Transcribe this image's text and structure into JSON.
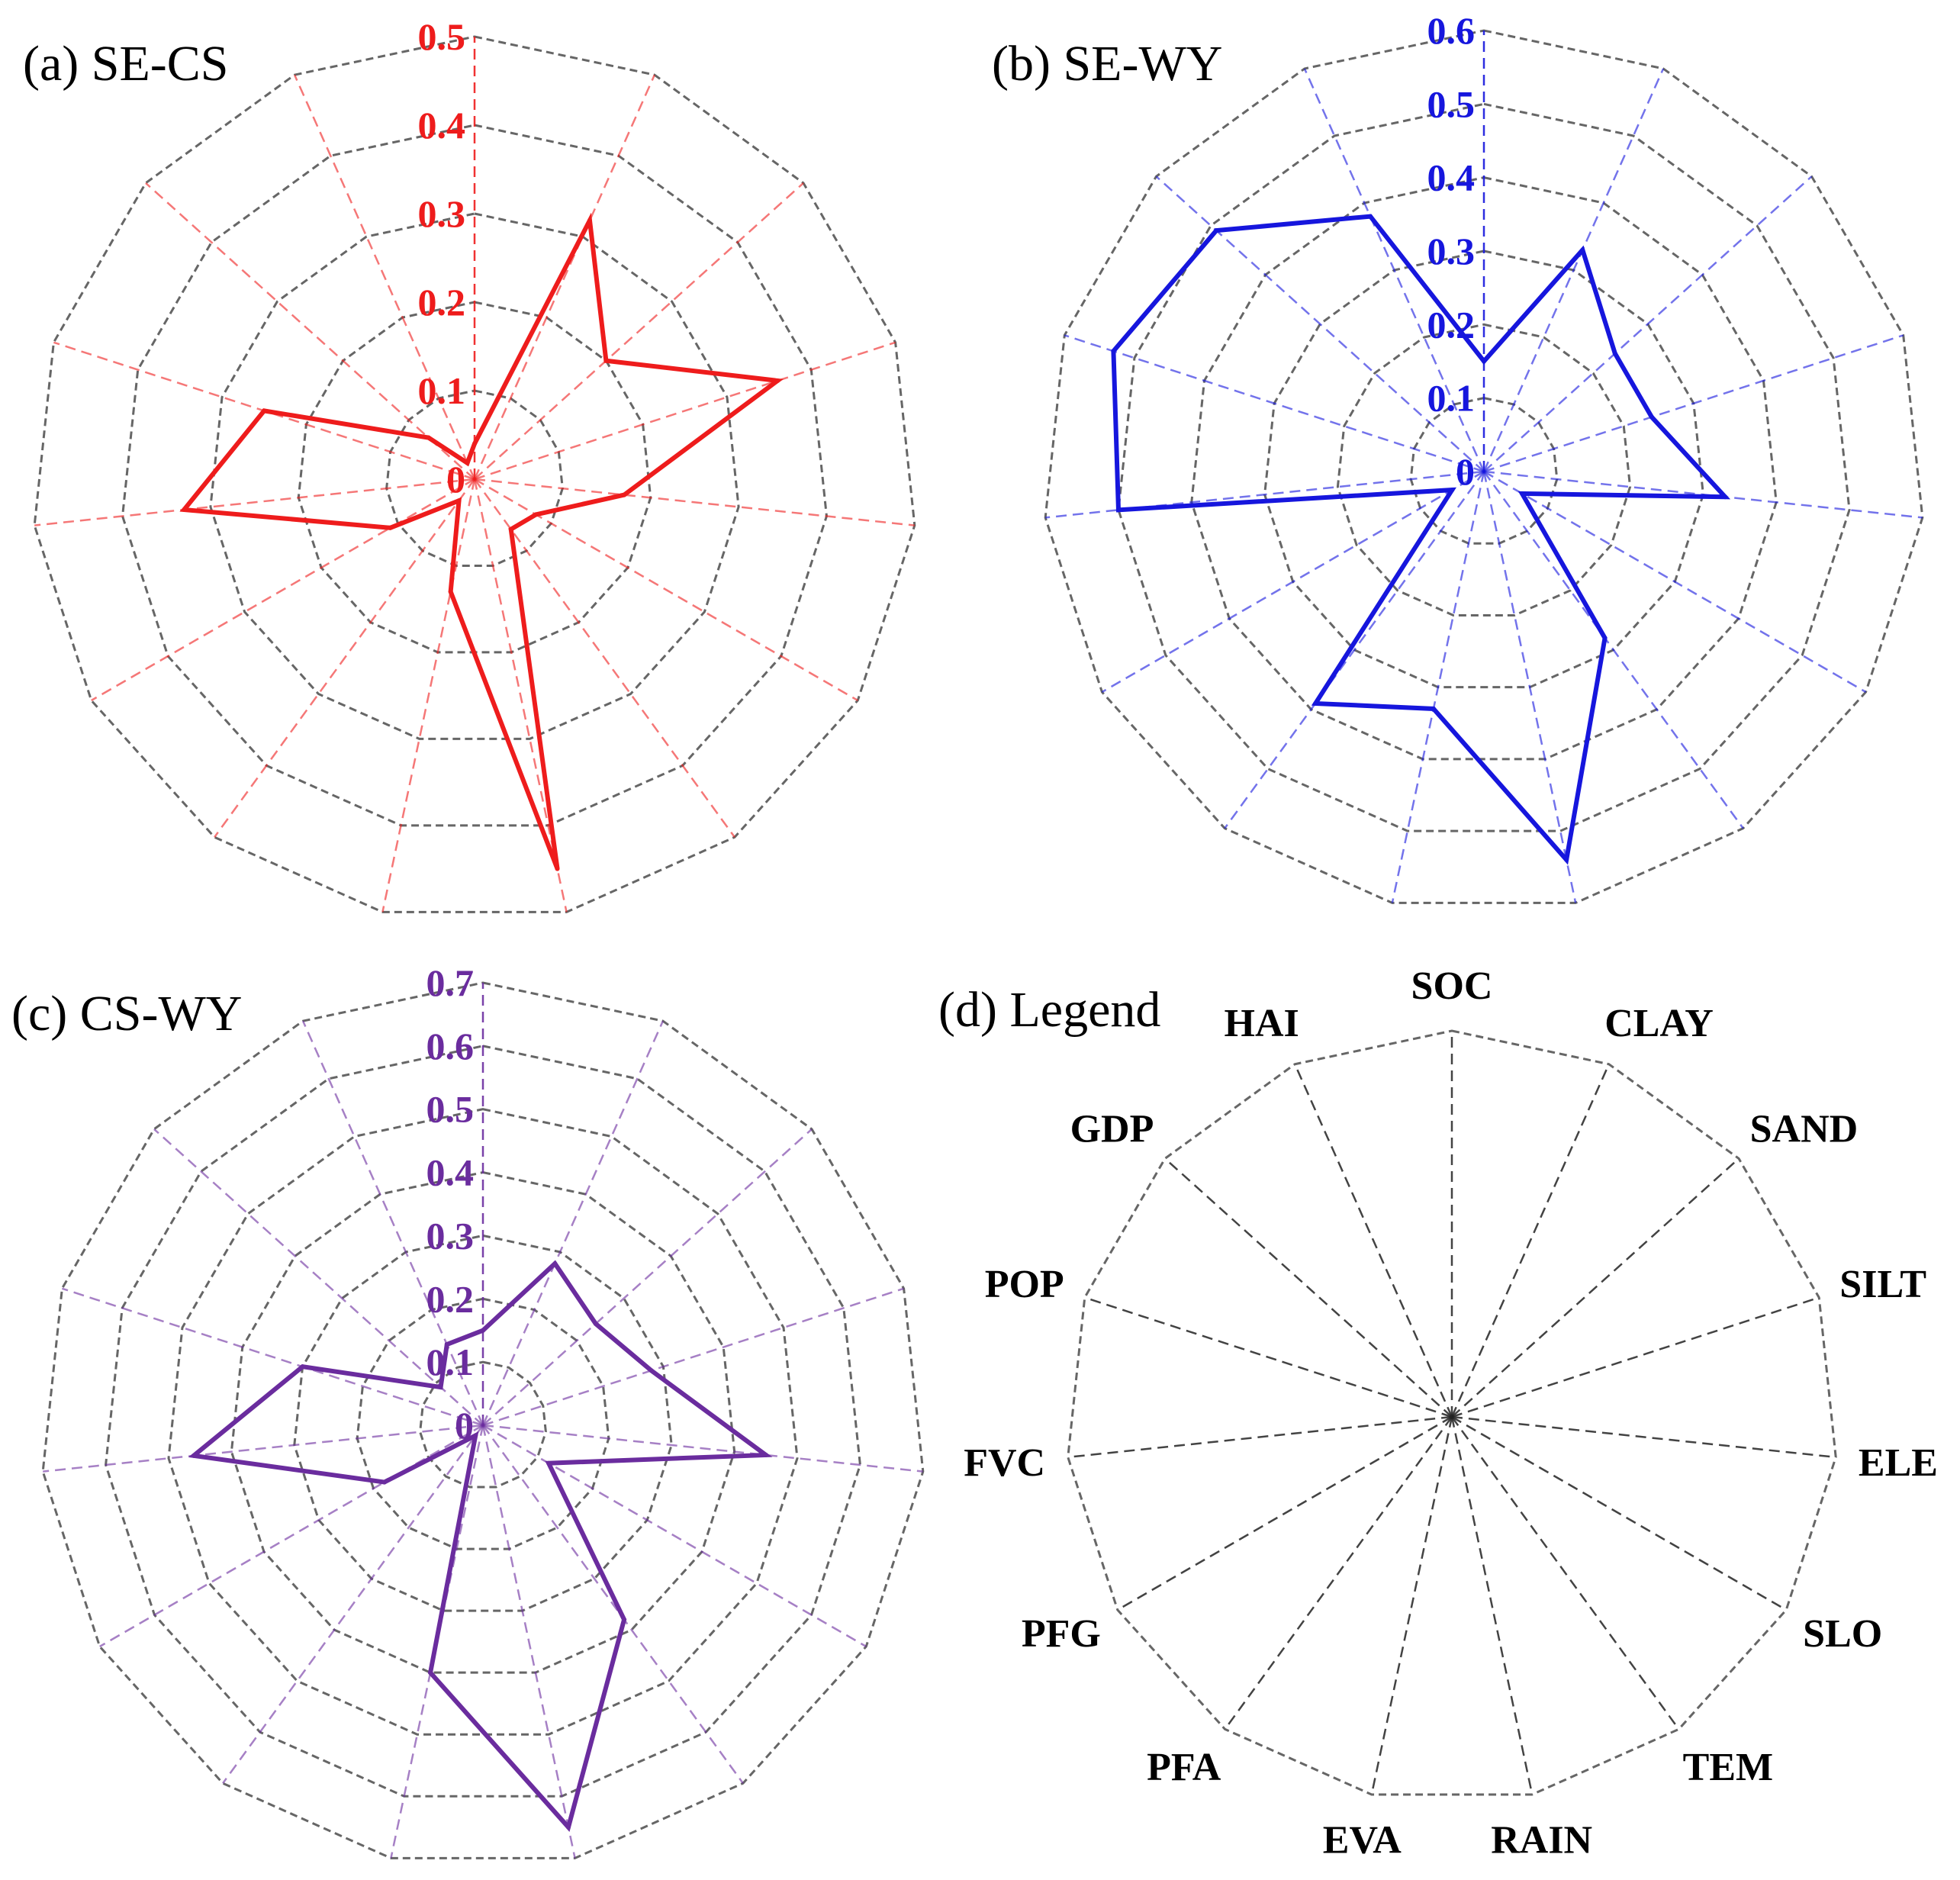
{
  "legend_title": "(d) Legend",
  "chart_data": [
    {
      "type": "radar",
      "title": "(a) SE-CS",
      "color": "#ee1c1c",
      "ticks": [
        "0",
        "0.1",
        "0.2",
        "0.3",
        "0.4",
        "0.5"
      ],
      "rmax": 0.5,
      "categories": [
        "SOC",
        "CLAY",
        "SAND",
        "SILT",
        "ELE",
        "SLO",
        "TEM",
        "RAIN",
        "EVA",
        "PFA",
        "PFG",
        "FVC",
        "POP",
        "GDP",
        "HAI"
      ],
      "values": [
        0.04,
        0.32,
        0.2,
        0.36,
        0.17,
        0.08,
        0.07,
        0.45,
        0.13,
        0.03,
        0.11,
        0.33,
        0.25,
        0.07,
        0.02
      ]
    },
    {
      "type": "radar",
      "title": "(b) SE-WY",
      "color": "#1616dd",
      "ticks": [
        "0",
        "0.1",
        "0.2",
        "0.3",
        "0.4",
        "0.5",
        "0.6"
      ],
      "rmax": 0.6,
      "categories": [
        "SOC",
        "CLAY",
        "SAND",
        "SILT",
        "ELE",
        "SLO",
        "TEM",
        "RAIN",
        "EVA",
        "PFA",
        "PFG",
        "FVC",
        "POP",
        "GDP",
        "HAI"
      ],
      "values": [
        0.15,
        0.33,
        0.24,
        0.24,
        0.33,
        0.06,
        0.28,
        0.54,
        0.33,
        0.39,
        0.05,
        0.5,
        0.53,
        0.49,
        0.38
      ]
    },
    {
      "type": "radar",
      "title": "(c) CS-WY",
      "color": "#6a2c9e",
      "ticks": [
        "0",
        "0.1",
        "0.2",
        "0.3",
        "0.4",
        "0.5",
        "0.6",
        "0.7"
      ],
      "rmax": 0.7,
      "categories": [
        "SOC",
        "CLAY",
        "SAND",
        "SILT",
        "ELE",
        "SLO",
        "TEM",
        "RAIN",
        "EVA",
        "PFA",
        "PFG",
        "FVC",
        "POP",
        "GDP",
        "HAI"
      ],
      "values": [
        0.15,
        0.28,
        0.24,
        0.28,
        0.45,
        0.12,
        0.38,
        0.65,
        0.4,
        0.02,
        0.18,
        0.46,
        0.3,
        0.09,
        0.14
      ]
    }
  ]
}
